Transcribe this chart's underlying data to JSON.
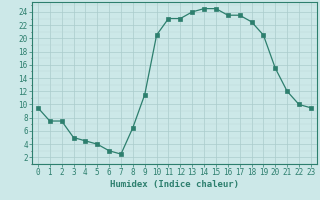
{
  "x": [
    0,
    1,
    2,
    3,
    4,
    5,
    6,
    7,
    8,
    9,
    10,
    11,
    12,
    13,
    14,
    15,
    16,
    17,
    18,
    19,
    20,
    21,
    22,
    23
  ],
  "y": [
    9.5,
    7.5,
    7.5,
    5.0,
    4.5,
    4.0,
    3.0,
    2.5,
    6.5,
    11.5,
    20.5,
    23.0,
    23.0,
    24.0,
    24.5,
    24.5,
    23.5,
    23.5,
    22.5,
    20.5,
    15.5,
    12.0,
    10.0,
    9.5
  ],
  "line_color": "#2d7f6e",
  "marker": "s",
  "marker_size": 2.5,
  "bg_color": "#cce8e8",
  "grid_color_major": "#aacccc",
  "grid_color_minor": "#bdd8d8",
  "xlabel": "Humidex (Indice chaleur)",
  "xlim": [
    -0.5,
    23.5
  ],
  "ylim": [
    1,
    25.5
  ],
  "yticks": [
    2,
    4,
    6,
    8,
    10,
    12,
    14,
    16,
    18,
    20,
    22,
    24
  ],
  "xticks": [
    0,
    1,
    2,
    3,
    4,
    5,
    6,
    7,
    8,
    9,
    10,
    11,
    12,
    13,
    14,
    15,
    16,
    17,
    18,
    19,
    20,
    21,
    22,
    23
  ],
  "label_fontsize": 6.5,
  "tick_fontsize": 5.5
}
